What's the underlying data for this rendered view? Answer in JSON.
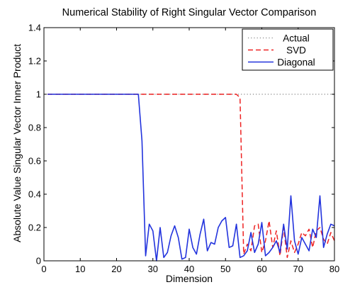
{
  "chart_data": {
    "type": "line",
    "title": "Numerical Stability of Right Singular Vector Comparison",
    "xlabel": "Dimension",
    "ylabel": "Absolute Value Singular Vector Inner Product",
    "xlim": [
      0,
      80
    ],
    "ylim": [
      0,
      1.4
    ],
    "xticks": [
      0,
      10,
      20,
      30,
      40,
      50,
      60,
      70,
      80
    ],
    "yticks": [
      0,
      0.2,
      0.4,
      0.6,
      0.8,
      1,
      1.2,
      1.4
    ],
    "xtick_labels": [
      "0",
      "10",
      "20",
      "30",
      "40",
      "50",
      "60",
      "70",
      "80"
    ],
    "ytick_labels": [
      "0",
      "0.2",
      "0.4",
      "0.6",
      "0.8",
      "1",
      "1.2",
      "1.4"
    ],
    "grid": false,
    "legend_position": "top-right",
    "series": [
      {
        "name": "Actual",
        "color": "#999999",
        "style": "dotted",
        "x": [
          1,
          80
        ],
        "y": [
          1,
          1
        ]
      },
      {
        "name": "SVD",
        "color": "#ee2222",
        "style": "dashed",
        "x": [
          1,
          2,
          3,
          4,
          5,
          6,
          7,
          8,
          9,
          10,
          11,
          12,
          13,
          14,
          15,
          16,
          17,
          18,
          19,
          20,
          21,
          22,
          23,
          24,
          25,
          26,
          27,
          28,
          29,
          30,
          31,
          32,
          33,
          34,
          35,
          36,
          37,
          38,
          39,
          40,
          41,
          42,
          43,
          44,
          45,
          46,
          47,
          48,
          49,
          50,
          51,
          52,
          53,
          54,
          55,
          56,
          57,
          58,
          59,
          60,
          61,
          62,
          63,
          64,
          65,
          66,
          67,
          68,
          69,
          70,
          71,
          72,
          73,
          74,
          75,
          76,
          77,
          78,
          79,
          80
        ],
        "y": [
          1,
          1,
          1,
          1,
          1,
          1,
          1,
          1,
          1,
          1,
          1,
          1,
          1,
          1,
          1,
          1,
          1,
          1,
          1,
          1,
          1,
          1,
          1,
          1,
          1,
          1,
          1,
          1,
          1,
          1,
          1,
          1,
          1,
          1,
          1,
          1,
          1,
          1,
          1,
          1,
          1,
          1,
          1,
          1,
          1,
          1,
          1,
          1,
          1,
          1,
          1,
          1,
          1,
          0.98,
          0.04,
          0.1,
          0.06,
          0.21,
          0.22,
          0.05,
          0.12,
          0.24,
          0.08,
          0.18,
          0.03,
          0.2,
          0.02,
          0.12,
          0.05,
          0.1,
          0.17,
          0.15,
          0.19,
          0.08,
          0.18,
          0.2,
          0.13,
          0.1,
          0.17,
          0.12
        ]
      },
      {
        "name": "Diagonal",
        "color": "#2233dd",
        "style": "solid",
        "x": [
          1,
          2,
          3,
          4,
          5,
          6,
          7,
          8,
          9,
          10,
          11,
          12,
          13,
          14,
          15,
          16,
          17,
          18,
          19,
          20,
          21,
          22,
          23,
          24,
          25,
          26,
          27,
          28,
          29,
          30,
          31,
          32,
          33,
          34,
          35,
          36,
          37,
          38,
          39,
          40,
          41,
          42,
          43,
          44,
          45,
          46,
          47,
          48,
          49,
          50,
          51,
          52,
          53,
          54,
          55,
          56,
          57,
          58,
          59,
          60,
          61,
          62,
          63,
          64,
          65,
          66,
          67,
          68,
          69,
          70,
          71,
          72,
          73,
          74,
          75,
          76,
          77,
          78,
          79,
          80
        ],
        "y": [
          1,
          1,
          1,
          1,
          1,
          1,
          1,
          1,
          1,
          1,
          1,
          1,
          1,
          1,
          1,
          1,
          1,
          1,
          1,
          1,
          1,
          1,
          1,
          1,
          1,
          1,
          0.72,
          0.03,
          0.22,
          0.18,
          0,
          0.2,
          0.02,
          0.05,
          0.15,
          0.21,
          0.14,
          0.01,
          0.02,
          0.19,
          0.08,
          0.04,
          0.16,
          0.25,
          0.06,
          0.11,
          0.1,
          0.2,
          0.24,
          0.26,
          0.08,
          0.09,
          0.22,
          0.02,
          0.03,
          0.06,
          0.17,
          0.05,
          0.1,
          0.23,
          0.03,
          0.05,
          0.08,
          0.12,
          0.05,
          0.22,
          0.07,
          0.39,
          0.12,
          0.04,
          0.14,
          0.1,
          0.06,
          0.19,
          0.14,
          0.39,
          0.08,
          0.16,
          0.22,
          0.21
        ]
      }
    ]
  }
}
